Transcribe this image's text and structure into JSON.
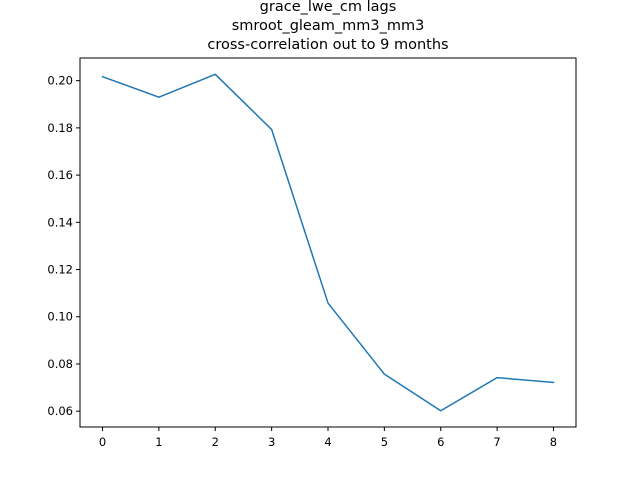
{
  "chart_data": {
    "type": "line",
    "title_lines": [
      "grace_lwe_cm lags",
      "smroot_gleam_mm3_mm3",
      "cross-correlation out to 9 months"
    ],
    "xlabel": "",
    "ylabel": "",
    "x": [
      0,
      1,
      2,
      3,
      4,
      5,
      6,
      7,
      8
    ],
    "series": [
      {
        "values": [
          0.2017,
          0.193,
          0.2027,
          0.1793,
          0.1058,
          0.0757,
          0.0602,
          0.0742,
          0.0722
        ],
        "color": "#1f77b4"
      }
    ],
    "xlim": [
      -0.4,
      8.4
    ],
    "ylim": [
      0.0533,
      0.2096
    ],
    "xticks": [
      0,
      1,
      2,
      3,
      4,
      5,
      6,
      7,
      8
    ],
    "yticks": [
      0.06,
      0.08,
      0.1,
      0.12,
      0.14,
      0.16,
      0.18,
      0.2
    ],
    "ytick_labels": [
      "0.06",
      "0.08",
      "0.10",
      "0.12",
      "0.14",
      "0.16",
      "0.18",
      "0.20"
    ],
    "grid": false,
    "legend": "none"
  }
}
